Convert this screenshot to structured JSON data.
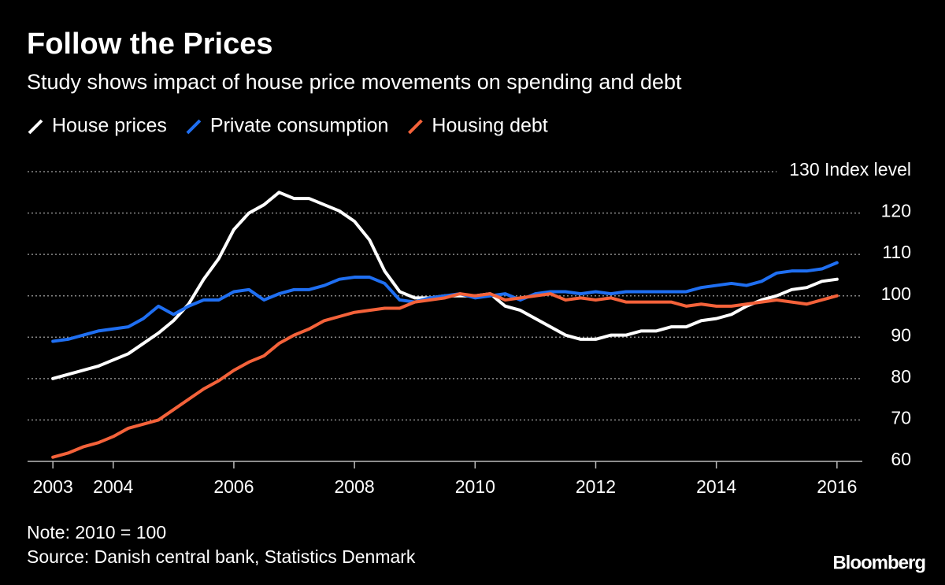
{
  "chart_data": {
    "type": "line",
    "title": "Follow the Prices",
    "subtitle": "Study shows impact of house price movements on spending and debt",
    "note": "Note: 2010 = 100",
    "source": "Source: Danish central bank, Statistics Denmark",
    "logo": "Bloomberg",
    "x": [
      2003,
      2003.25,
      2003.5,
      2003.75,
      2004,
      2004.25,
      2004.5,
      2004.75,
      2005,
      2005.25,
      2005.5,
      2005.75,
      2006,
      2006.25,
      2006.5,
      2006.75,
      2007,
      2007.25,
      2007.5,
      2007.75,
      2008,
      2008.25,
      2008.5,
      2008.75,
      2009,
      2009.25,
      2009.5,
      2009.75,
      2010,
      2010.25,
      2010.5,
      2010.75,
      2011,
      2011.25,
      2011.5,
      2011.75,
      2012,
      2012.25,
      2012.5,
      2012.75,
      2013,
      2013.25,
      2013.5,
      2013.75,
      2014,
      2014.25,
      2014.5,
      2014.75,
      2015,
      2015.25,
      2015.5,
      2015.75,
      2016
    ],
    "series": [
      {
        "name": "House prices",
        "color": "#ffffff",
        "values": [
          80,
          81,
          82,
          83,
          84.5,
          86,
          88.5,
          91,
          94,
          98,
          104,
          109,
          116,
          120,
          122,
          125,
          123.5,
          123.5,
          122,
          120.5,
          118,
          113.5,
          106,
          101,
          99.5,
          99.5,
          100,
          100,
          100,
          100.5,
          97.5,
          96.5,
          94.5,
          92.5,
          90.5,
          89.5,
          89.5,
          90.5,
          90.5,
          91.5,
          91.5,
          92.5,
          92.5,
          94,
          94.5,
          95.5,
          97.5,
          99,
          100,
          101.5,
          102,
          103.5,
          104
        ]
      },
      {
        "name": "Private consumption",
        "color": "#1f6ff2",
        "values": [
          89,
          89.5,
          90.5,
          91.5,
          92,
          92.5,
          94.5,
          97.5,
          95.5,
          97.5,
          99,
          99,
          101,
          101.5,
          99,
          100.5,
          101.5,
          101.5,
          102.5,
          104,
          104.5,
          104.5,
          103,
          99,
          98.5,
          99.5,
          100,
          100.5,
          99.5,
          100,
          100.5,
          99,
          100.5,
          101,
          101,
          100.5,
          101,
          100.5,
          101,
          101,
          101,
          101,
          101,
          102,
          102.5,
          103,
          102.5,
          103.5,
          105.5,
          106,
          106,
          106.5,
          108
        ]
      },
      {
        "name": "Housing debt",
        "color": "#f4623a",
        "values": [
          61,
          62,
          63.5,
          64.5,
          66,
          68,
          69,
          70,
          72.5,
          75,
          77.5,
          79.5,
          82,
          84,
          85.5,
          88.5,
          90.5,
          92,
          94,
          95,
          96,
          96.5,
          97,
          97,
          98.5,
          99,
          99.5,
          100.5,
          100,
          100.5,
          99,
          99.5,
          100,
          100.5,
          99,
          99.5,
          99,
          99.5,
          98.5,
          98.5,
          98.5,
          98.5,
          97.5,
          98,
          97.5,
          97.5,
          98,
          98.5,
          99,
          98.5,
          98,
          99,
          100
        ]
      }
    ],
    "xlim": [
      2002.58,
      2016.42
    ],
    "xticks": [
      2003,
      2004,
      2006,
      2008,
      2010,
      2012,
      2014,
      2016
    ],
    "ylim": [
      60,
      130
    ],
    "yticks": [
      60,
      70,
      80,
      90,
      100,
      110,
      120,
      {
        "value": 130,
        "label": "130 Index level"
      }
    ],
    "grid": true
  }
}
